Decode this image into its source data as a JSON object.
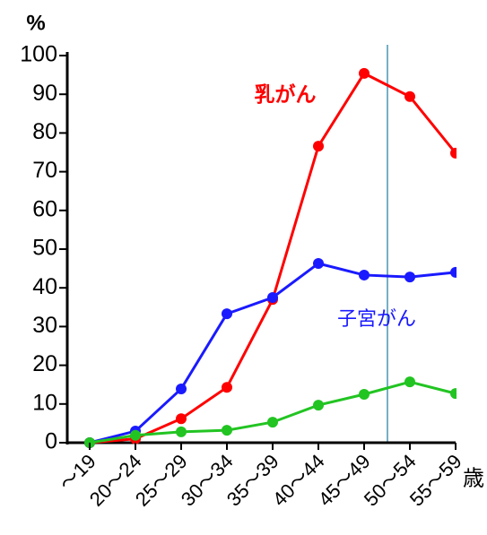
{
  "chart_data": {
    "type": "line",
    "y_label": "%",
    "x_label": "歳",
    "categories": [
      "〜19",
      "20〜24",
      "25〜29",
      "30〜34",
      "35〜39",
      "40〜44",
      "45〜49",
      "50〜54",
      "55〜59"
    ],
    "series": [
      {
        "name": "乳がん",
        "color": "#ff0000",
        "values": [
          0,
          1,
          6.2,
          14.3,
          37,
          76.6,
          95.4,
          89.4,
          74.8
        ]
      },
      {
        "name": "子宮がん",
        "color": "#1a1aff",
        "values": [
          0,
          3,
          13.9,
          33.3,
          37.5,
          46.3,
          43.3,
          42.8,
          44
        ]
      },
      {
        "color": "#22c422",
        "values": [
          0,
          1.9,
          2.8,
          3.2,
          5.3,
          9.7,
          12.5,
          15.7,
          12.7
        ]
      }
    ],
    "ylim": [
      0,
      100
    ],
    "yticks": [
      0,
      10,
      20,
      30,
      40,
      50,
      60,
      70,
      80,
      90,
      100
    ]
  }
}
